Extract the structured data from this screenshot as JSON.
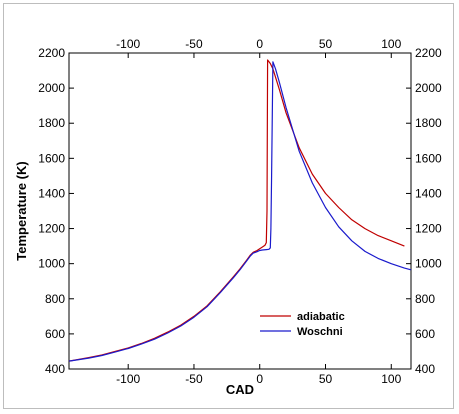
{
  "chart_data": {
    "type": "line",
    "title": "",
    "xlabel": "CAD",
    "ylabel": "Temperature (K)",
    "xlim": [
      -145,
      115
    ],
    "ylim": [
      400,
      2200
    ],
    "x_ticks": [
      -100,
      -50,
      0,
      50,
      100
    ],
    "y_ticks": [
      400,
      600,
      800,
      1000,
      1200,
      1400,
      1600,
      1800,
      2000,
      2200
    ],
    "mirror_axes": true,
    "grid": false,
    "legend_position": "bottom-right",
    "series": [
      {
        "name": "adiabatic",
        "color": "#c00000",
        "x": [
          -145,
          -130,
          -120,
          -110,
          -100,
          -90,
          -80,
          -70,
          -60,
          -50,
          -40,
          -30,
          -20,
          -15,
          -10,
          -7,
          -5,
          -2,
          0,
          2,
          4,
          5,
          5.5,
          6,
          8,
          10,
          15,
          20,
          30,
          40,
          50,
          60,
          70,
          80,
          90,
          100,
          110
        ],
        "y": [
          445,
          465,
          480,
          500,
          520,
          545,
          575,
          610,
          650,
          700,
          760,
          840,
          925,
          970,
          1020,
          1050,
          1065,
          1075,
          1085,
          1095,
          1105,
          1120,
          1300,
          2160,
          2140,
          2110,
          1990,
          1860,
          1660,
          1510,
          1400,
          1320,
          1250,
          1200,
          1160,
          1130,
          1100
        ]
      },
      {
        "name": "Woschni",
        "color": "#1a1acc",
        "x": [
          -145,
          -130,
          -120,
          -110,
          -100,
          -90,
          -80,
          -70,
          -60,
          -50,
          -40,
          -30,
          -20,
          -15,
          -10,
          -7,
          -5,
          -2,
          0,
          2,
          5,
          7,
          8,
          8.5,
          9,
          10,
          12,
          15,
          20,
          30,
          40,
          50,
          60,
          70,
          80,
          90,
          100,
          110,
          115
        ],
        "y": [
          445,
          462,
          477,
          496,
          517,
          542,
          570,
          605,
          645,
          695,
          755,
          835,
          920,
          965,
          1015,
          1045,
          1060,
          1068,
          1075,
          1078,
          1080,
          1082,
          1090,
          1200,
          1500,
          2150,
          2110,
          2030,
          1890,
          1640,
          1460,
          1320,
          1210,
          1130,
          1070,
          1030,
          1000,
          975,
          965
        ]
      }
    ]
  }
}
